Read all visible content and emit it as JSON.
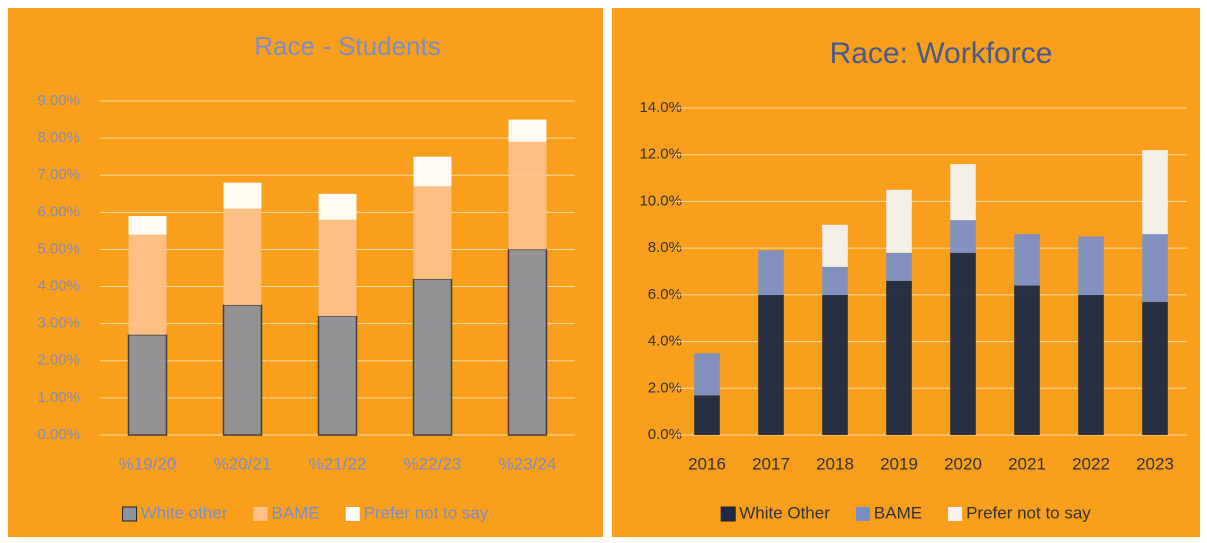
{
  "chart_data": [
    {
      "type": "stacked_bar",
      "title": "Race - Students",
      "categories": [
        "%19/20",
        "%20/21",
        "%21/22",
        "%22/23",
        "%23/24"
      ],
      "series": [
        {
          "name": "White other",
          "color": "#8E939C",
          "values": [
            2.7,
            3.5,
            3.2,
            4.2,
            5.0
          ]
        },
        {
          "name": "BAME",
          "color": "#FFC189",
          "values": [
            2.7,
            2.6,
            2.6,
            2.5,
            2.9
          ]
        },
        {
          "name": "Prefer not to say",
          "color": "#FFFFFF",
          "values": [
            0.5,
            0.7,
            0.7,
            0.8,
            0.6
          ]
        }
      ],
      "ylim": [
        0,
        9
      ],
      "yticks": [
        {
          "value": 0,
          "label": "0.00%"
        },
        {
          "value": 1,
          "label": "1.00%"
        },
        {
          "value": 2,
          "label": "2.00%"
        },
        {
          "value": 3,
          "label": "3.00%"
        },
        {
          "value": 4,
          "label": "4.00%"
        },
        {
          "value": 5,
          "label": "5.00%"
        },
        {
          "value": 6,
          "label": "6.00%"
        },
        {
          "value": 7,
          "label": "7.00%"
        },
        {
          "value": 8,
          "label": "8.00%"
        },
        {
          "value": 9,
          "label": "9.00%"
        }
      ],
      "grid": true,
      "legend": "bottom"
    },
    {
      "type": "stacked_bar",
      "title": "Race: Workforce",
      "categories": [
        "2016",
        "2017",
        "2018",
        "2019",
        "2020",
        "2021",
        "2022",
        "2023"
      ],
      "series": [
        {
          "name": "White Other",
          "color": "#1F2A47",
          "values": [
            1.7,
            6.0,
            6.0,
            6.6,
            7.8,
            6.4,
            6.0,
            5.7
          ]
        },
        {
          "name": "BAME",
          "color": "#7A8FC8",
          "values": [
            1.8,
            1.9,
            1.2,
            1.2,
            1.4,
            2.2,
            2.5,
            2.9
          ]
        },
        {
          "name": "Prefer not to say",
          "color": "#F2F2F2",
          "values": [
            0,
            0,
            1.8,
            2.7,
            2.4,
            0,
            0,
            3.6
          ]
        }
      ],
      "ylim": [
        0,
        14
      ],
      "yticks": [
        {
          "value": 0,
          "label": "0.0%"
        },
        {
          "value": 2,
          "label": "2.0%"
        },
        {
          "value": 4,
          "label": "4.0%"
        },
        {
          "value": 6,
          "label": "6.0%"
        },
        {
          "value": 8,
          "label": "8.0%"
        },
        {
          "value": 10,
          "label": "10.0%"
        },
        {
          "value": 12,
          "label": "12.0%"
        },
        {
          "value": 14,
          "label": "14.0%"
        }
      ],
      "grid": true,
      "legend": "bottom"
    }
  ]
}
